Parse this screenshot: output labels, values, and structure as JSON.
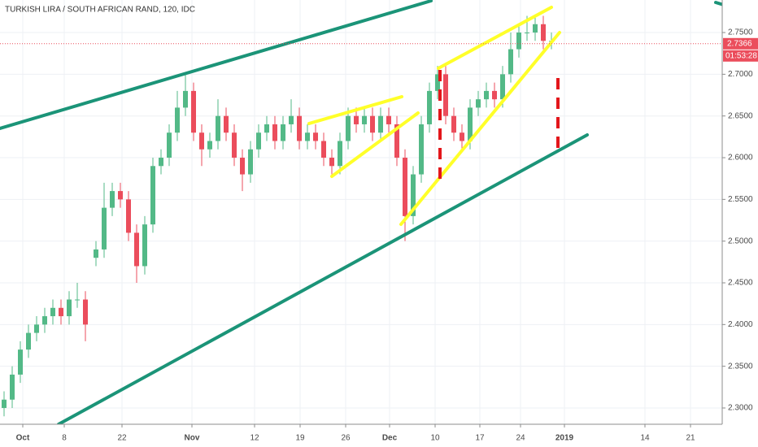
{
  "chart_data": {
    "type": "candlestick",
    "title": "TURKISH LIRA / SOUTH AFRICAN RAND, 120, IDC",
    "x": [
      5,
      15,
      25,
      35,
      45,
      55,
      65,
      75,
      85,
      95,
      105,
      118,
      128,
      138,
      148,
      158,
      168,
      178,
      188,
      198,
      208,
      218,
      228,
      238,
      248,
      258,
      268,
      278,
      288,
      298,
      308,
      318,
      328,
      338,
      348,
      358,
      368,
      378,
      388,
      398,
      408,
      418,
      428,
      438,
      448,
      458,
      468,
      478,
      488,
      498,
      508,
      518,
      528,
      538,
      548,
      558,
      568,
      578,
      588,
      598,
      608,
      618,
      628,
      638,
      648,
      658,
      668,
      678
    ],
    "open": [
      2.3,
      2.31,
      2.34,
      2.37,
      2.39,
      2.4,
      2.41,
      2.42,
      2.41,
      2.43,
      2.43,
      2.48,
      2.49,
      2.54,
      2.56,
      2.55,
      2.51,
      2.47,
      2.52,
      2.59,
      2.6,
      2.63,
      2.66,
      2.68,
      2.63,
      2.61,
      2.62,
      2.65,
      2.63,
      2.6,
      2.58,
      2.61,
      2.63,
      2.64,
      2.62,
      2.64,
      2.65,
      2.62,
      2.63,
      2.62,
      2.6,
      2.59,
      2.62,
      2.65,
      2.64,
      2.65,
      2.63,
      2.65,
      2.64,
      2.6,
      2.53,
      2.58,
      2.64,
      2.68,
      2.7,
      2.65,
      2.63,
      2.62,
      2.66,
      2.67,
      2.68,
      2.67,
      2.7,
      2.73,
      2.75,
      2.75,
      2.76,
      2.74
    ],
    "high": [
      2.32,
      2.35,
      2.38,
      2.4,
      2.41,
      2.42,
      2.43,
      2.43,
      2.44,
      2.45,
      2.44,
      2.5,
      2.57,
      2.57,
      2.57,
      2.56,
      2.52,
      2.53,
      2.6,
      2.61,
      2.64,
      2.68,
      2.7,
      2.69,
      2.64,
      2.63,
      2.67,
      2.66,
      2.64,
      2.61,
      2.62,
      2.64,
      2.65,
      2.65,
      2.65,
      2.67,
      2.66,
      2.64,
      2.64,
      2.63,
      2.61,
      2.63,
      2.66,
      2.66,
      2.66,
      2.66,
      2.66,
      2.66,
      2.65,
      2.61,
      2.59,
      2.65,
      2.69,
      2.71,
      2.71,
      2.66,
      2.64,
      2.67,
      2.68,
      2.69,
      2.69,
      2.71,
      2.75,
      2.76,
      2.77,
      2.77,
      2.77,
      2.75
    ],
    "low": [
      2.29,
      2.3,
      2.33,
      2.36,
      2.38,
      2.39,
      2.4,
      2.4,
      2.4,
      2.42,
      2.38,
      2.47,
      2.48,
      2.53,
      2.54,
      2.5,
      2.45,
      2.46,
      2.51,
      2.58,
      2.59,
      2.62,
      2.65,
      2.62,
      2.59,
      2.6,
      2.61,
      2.62,
      2.59,
      2.56,
      2.57,
      2.6,
      2.62,
      2.61,
      2.61,
      2.63,
      2.61,
      2.61,
      2.61,
      2.59,
      2.58,
      2.58,
      2.61,
      2.63,
      2.63,
      2.62,
      2.62,
      2.63,
      2.59,
      2.5,
      2.52,
      2.57,
      2.63,
      2.67,
      2.64,
      2.62,
      2.61,
      2.61,
      2.65,
      2.66,
      2.66,
      2.66,
      2.69,
      2.72,
      2.74,
      2.74,
      2.73,
      2.73
    ],
    "close": [
      2.31,
      2.34,
      2.37,
      2.39,
      2.4,
      2.41,
      2.42,
      2.41,
      2.43,
      2.43,
      2.4,
      2.49,
      2.54,
      2.56,
      2.55,
      2.51,
      2.47,
      2.52,
      2.59,
      2.6,
      2.63,
      2.66,
      2.68,
      2.63,
      2.61,
      2.62,
      2.65,
      2.63,
      2.6,
      2.58,
      2.61,
      2.63,
      2.64,
      2.62,
      2.64,
      2.65,
      2.62,
      2.63,
      2.62,
      2.6,
      2.59,
      2.62,
      2.65,
      2.64,
      2.65,
      2.63,
      2.65,
      2.64,
      2.6,
      2.53,
      2.58,
      2.64,
      2.68,
      2.7,
      2.65,
      2.63,
      2.62,
      2.66,
      2.67,
      2.68,
      2.67,
      2.7,
      2.73,
      2.75,
      2.75,
      2.76,
      2.74,
      2.74
    ],
    "up_color": "#53b987",
    "down_color": "#eb4d5c",
    "xlim": [
      0,
      888
    ],
    "ylim": [
      2.2805,
      2.789
    ],
    "xticks": [
      {
        "value": 28,
        "label": "Oct"
      },
      {
        "value": 79,
        "label": "8"
      },
      {
        "value": 150,
        "label": "22"
      },
      {
        "value": 236,
        "label": "Nov"
      },
      {
        "value": 313,
        "label": "12"
      },
      {
        "value": 369,
        "label": "19"
      },
      {
        "value": 425,
        "label": "26"
      },
      {
        "value": 479,
        "label": "Dec"
      },
      {
        "value": 535,
        "label": "10"
      },
      {
        "value": 590,
        "label": "17"
      },
      {
        "value": 640,
        "label": "24"
      },
      {
        "value": 694,
        "label": "2019"
      },
      {
        "value": 793,
        "label": "14"
      },
      {
        "value": 849,
        "label": "21"
      }
    ],
    "yticks": [
      {
        "value": 2.3,
        "label": "2.3000"
      },
      {
        "value": 2.35,
        "label": "2.3500"
      },
      {
        "value": 2.4,
        "label": "2.4000"
      },
      {
        "value": 2.45,
        "label": "2.4500"
      },
      {
        "value": 2.5,
        "label": "2.5000"
      },
      {
        "value": 2.55,
        "label": "2.5500"
      },
      {
        "value": 2.6,
        "label": "2.6000"
      },
      {
        "value": 2.65,
        "label": "2.6500"
      },
      {
        "value": 2.7,
        "label": "2.7000"
      },
      {
        "value": 2.75,
        "label": "2.7500"
      }
    ],
    "grid": true,
    "last_price": {
      "value": 2.7366,
      "label": "2.7366"
    },
    "countdown": "01:53:28"
  }
}
